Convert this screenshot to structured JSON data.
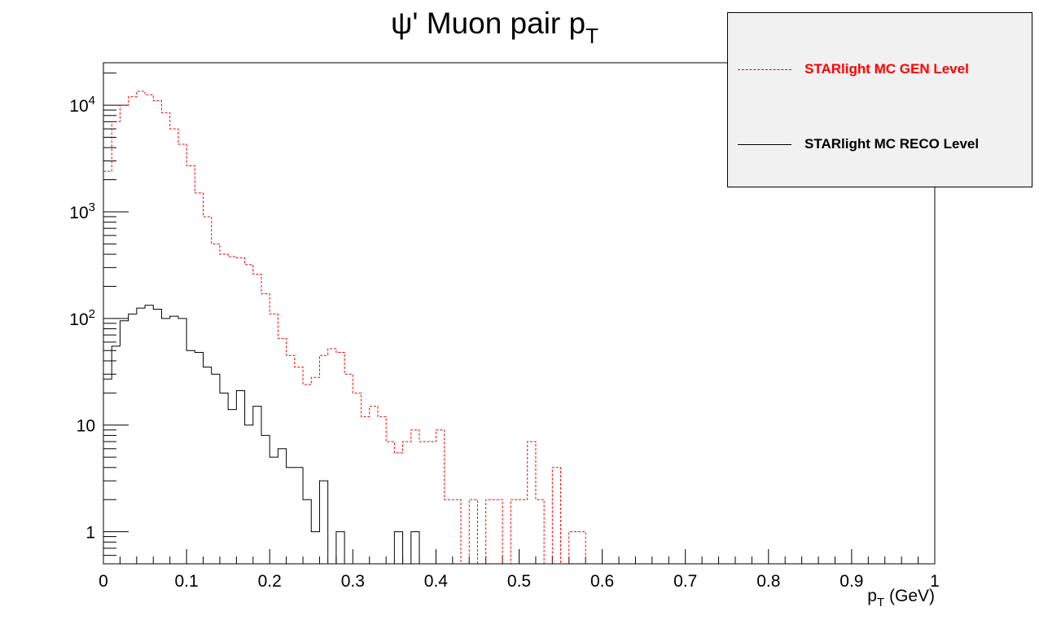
{
  "chart_data": {
    "type": "histogram",
    "title": "ψ' Muon pair p",
    "title_sub": "T",
    "xlabel": "p",
    "xlabel_sub": "T",
    "xlabel_suffix": " (GeV)",
    "ylabel": "",
    "xlim": [
      0,
      1
    ],
    "ylim": [
      0.5,
      25000
    ],
    "yscale": "log",
    "grid": false,
    "legend_position": "top-right",
    "bin_width": 0.01,
    "x_ticks": [
      "0",
      "0.1",
      "0.2",
      "0.3",
      "0.4",
      "0.5",
      "0.6",
      "0.7",
      "0.8",
      "0.9",
      "1"
    ],
    "y_ticks": [
      {
        "value": 1,
        "base": "1",
        "exp": ""
      },
      {
        "value": 10,
        "base": "10",
        "exp": ""
      },
      {
        "value": 100,
        "base": "10",
        "exp": "2"
      },
      {
        "value": 1000,
        "base": "10",
        "exp": "3"
      },
      {
        "value": 10000,
        "base": "10",
        "exp": "4"
      }
    ],
    "series": [
      {
        "name": "STARlight MC GEN Level",
        "color": "#ff0000",
        "style": "dashed",
        "values": [
          2400,
          7000,
          10000,
          12000,
          13500,
          12500,
          11000,
          8500,
          6000,
          4300,
          2700,
          1500,
          900,
          500,
          400,
          380,
          370,
          320,
          260,
          170,
          110,
          65,
          45,
          35,
          24,
          28,
          45,
          52,
          48,
          30,
          20,
          12,
          15,
          12,
          7,
          5.5,
          7,
          9,
          7,
          7,
          9,
          2,
          2,
          0,
          2,
          0,
          2,
          2,
          0,
          2,
          2,
          7,
          2,
          0,
          4,
          0,
          1,
          1,
          0,
          0,
          0,
          0,
          0,
          0,
          0,
          0,
          0,
          0,
          0,
          0,
          0,
          0,
          0,
          0,
          0,
          0,
          0,
          0,
          0,
          0,
          0,
          0,
          0,
          0,
          0,
          0,
          0,
          0,
          0,
          0,
          0,
          0,
          0,
          0,
          0,
          0,
          0,
          0,
          0,
          0
        ]
      },
      {
        "name": "STARlight MC RECO Level",
        "color": "#000000",
        "style": "solid",
        "values": [
          27,
          55,
          95,
          110,
          125,
          133,
          122,
          100,
          105,
          100,
          50,
          48,
          35,
          30,
          20,
          14,
          21,
          10,
          15,
          8,
          5,
          6,
          4,
          4,
          2,
          1,
          3,
          0,
          1,
          0,
          0,
          0,
          0,
          0,
          0,
          1,
          0,
          1,
          0,
          0,
          0,
          0,
          0,
          0,
          0,
          0,
          0,
          0,
          0,
          0,
          0,
          0,
          0,
          0,
          0,
          0,
          0,
          0,
          0,
          0,
          0,
          0,
          0,
          0,
          0,
          0,
          0,
          0,
          0,
          0,
          0,
          0,
          0,
          0,
          0,
          0,
          0,
          0,
          0,
          0,
          0,
          0,
          0,
          0,
          0,
          0,
          0,
          0,
          0,
          0,
          0,
          0,
          0,
          0,
          0,
          0,
          0,
          0,
          0,
          0
        ]
      }
    ]
  }
}
